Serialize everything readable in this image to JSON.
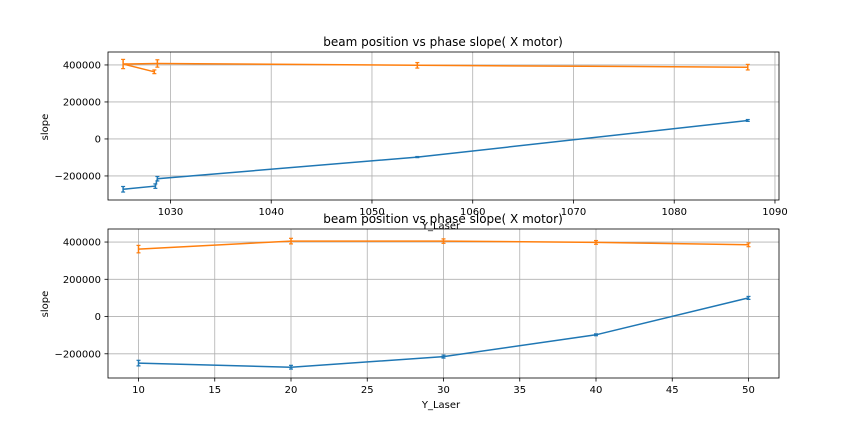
{
  "chart_data": [
    {
      "type": "line",
      "title": "beam position vs phase slope( X motor)",
      "xlabel": "Y_Laser",
      "ylabel": "slope",
      "xlim": [
        1023.8,
        1090.4
      ],
      "ylim": [
        -330000,
        470000
      ],
      "xticks": [
        1030,
        1040,
        1050,
        1060,
        1070,
        1080,
        1090
      ],
      "yticks": [
        -200000,
        0,
        200000,
        400000
      ],
      "grid": true,
      "error_bars": true,
      "series": [
        {
          "color": "#1f77b4",
          "x": [
            1025.3,
            1028.5,
            1028.7,
            1054.5,
            1087.3
          ],
          "y": [
            -272000,
            -255000,
            -215000,
            -98000,
            100000
          ],
          "yerr": [
            15000,
            12000,
            12000,
            3000,
            5000
          ]
        },
        {
          "color": "#ff7f0e",
          "x": [
            1028.4,
            1025.3,
            1028.7,
            1054.5,
            1087.3
          ],
          "y": [
            363000,
            405000,
            408000,
            398000,
            388000
          ],
          "yerr": [
            10000,
            25000,
            20000,
            15000,
            15000
          ]
        }
      ]
    },
    {
      "type": "line",
      "title": "beam position vs phase slope( X motor)",
      "xlabel": "Y_Laser",
      "ylabel": "slope",
      "xlim": [
        8.0,
        52.0
      ],
      "ylim": [
        -330000,
        470000
      ],
      "xticks": [
        10,
        15,
        20,
        25,
        30,
        35,
        40,
        45,
        50
      ],
      "yticks": [
        -200000,
        0,
        200000,
        400000
      ],
      "grid": true,
      "error_bars": true,
      "series": [
        {
          "color": "#1f77b4",
          "x": [
            10,
            20,
            30,
            40,
            50
          ],
          "y": [
            -250000,
            -272000,
            -215000,
            -98000,
            100000
          ],
          "yerr": [
            15000,
            10000,
            8000,
            5000,
            8000
          ]
        },
        {
          "color": "#ff7f0e",
          "x": [
            10,
            20,
            30,
            40,
            50
          ],
          "y": [
            362000,
            405000,
            405000,
            398000,
            385000
          ],
          "yerr": [
            20000,
            15000,
            12000,
            10000,
            10000
          ]
        }
      ]
    }
  ]
}
